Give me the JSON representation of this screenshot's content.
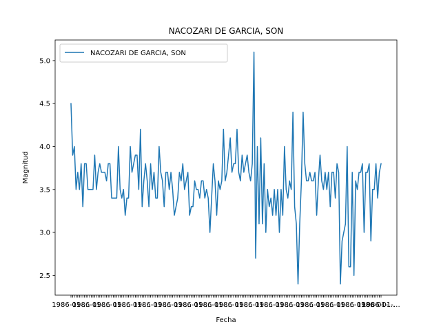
{
  "chart_data": {
    "type": "line",
    "title": "NACOZARI DE GARCIA, SON",
    "xlabel": "Fecha",
    "ylabel": "Magnitud",
    "ylim": [
      2.27,
      5.24
    ],
    "yticks": [
      "2.5",
      "3.0",
      "3.5",
      "4.0",
      "4.5",
      "5.0"
    ],
    "x_tick_text": "1986-01-…",
    "grid": false,
    "legend_placement": "upper-left",
    "series": [
      {
        "name": "NACOZARI DE GARCIA, SON",
        "color": "#1f77b4",
        "values": [
          4.5,
          3.9,
          4.0,
          3.5,
          3.7,
          3.5,
          3.8,
          3.3,
          3.8,
          3.8,
          3.5,
          3.5,
          3.5,
          3.5,
          3.9,
          3.5,
          3.7,
          3.8,
          3.7,
          3.7,
          3.7,
          3.6,
          3.8,
          3.8,
          3.4,
          3.4,
          3.4,
          3.4,
          4.0,
          3.5,
          3.4,
          3.5,
          3.2,
          3.4,
          3.4,
          4.0,
          3.7,
          3.8,
          3.9,
          3.9,
          3.5,
          4.2,
          3.3,
          3.6,
          3.8,
          3.6,
          3.3,
          3.8,
          3.5,
          3.7,
          3.4,
          3.4,
          4.0,
          3.7,
          3.6,
          3.3,
          3.7,
          3.7,
          3.5,
          3.7,
          3.5,
          3.2,
          3.3,
          3.4,
          3.7,
          3.6,
          3.8,
          3.5,
          3.6,
          3.7,
          3.2,
          3.3,
          3.3,
          3.6,
          3.5,
          3.5,
          3.4,
          3.6,
          3.6,
          3.4,
          3.5,
          3.4,
          3.0,
          3.4,
          3.8,
          3.6,
          3.2,
          3.6,
          3.5,
          3.6,
          4.2,
          3.6,
          3.7,
          3.9,
          4.1,
          3.7,
          3.8,
          3.8,
          4.2,
          3.7,
          3.6,
          3.9,
          3.7,
          3.8,
          3.9,
          3.7,
          3.6,
          3.8,
          5.1,
          2.7,
          4.0,
          3.1,
          4.1,
          3.1,
          3.8,
          3.0,
          3.5,
          3.3,
          3.4,
          3.2,
          3.5,
          3.2,
          3.5,
          3.0,
          3.5,
          3.2,
          4.0,
          3.5,
          3.4,
          3.6,
          3.5,
          4.4,
          3.3,
          3.1,
          2.4,
          3.1,
          3.6,
          4.4,
          3.8,
          3.6,
          3.6,
          3.7,
          3.6,
          3.6,
          3.7,
          3.2,
          3.6,
          3.9,
          3.6,
          3.5,
          3.7,
          3.5,
          3.7,
          3.3,
          3.7,
          3.7,
          3.4,
          3.8,
          3.7,
          2.4,
          2.9,
          3.0,
          3.1,
          4.0,
          2.6,
          2.6,
          3.7,
          2.5,
          3.6,
          3.5,
          3.7,
          3.7,
          3.8,
          3.0,
          3.7,
          3.7,
          3.8,
          2.9,
          3.5,
          3.5,
          3.8,
          3.4,
          3.7,
          3.8
        ]
      }
    ]
  }
}
